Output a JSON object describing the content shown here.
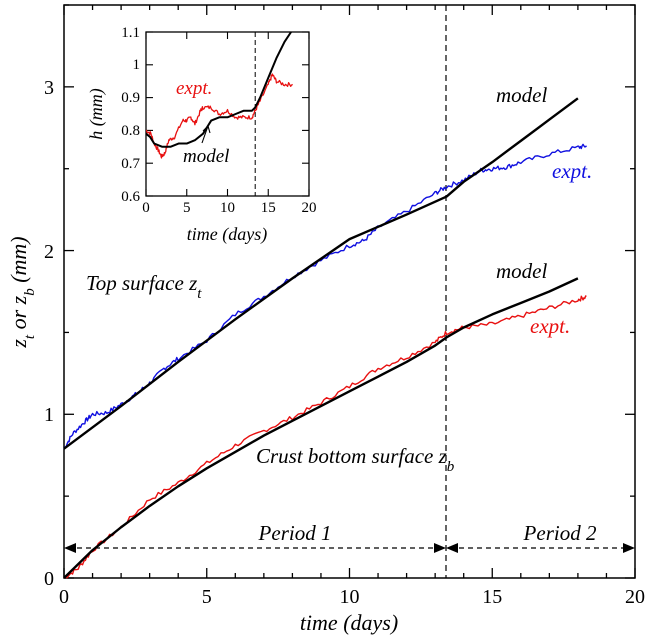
{
  "colors": {
    "expt_top": "#1010e0",
    "expt_bottom": "#e81010",
    "model": "#000000",
    "axis": "#000000"
  },
  "chart_data": [
    {
      "type": "line",
      "title": "",
      "xlabel": "time (days)",
      "ylabel_main": "z",
      "ylabel_sub1": "t",
      "ylabel_mid": " or z",
      "ylabel_sub2": "b",
      "ylabel_unit": " (mm)",
      "xlim": [
        0,
        20
      ],
      "ylim": [
        0,
        3.5
      ],
      "x_ticks": [
        "0",
        "5",
        "10",
        "15",
        "20"
      ],
      "y_ticks": [
        "0",
        "1",
        "2",
        "3"
      ],
      "grid": false,
      "period_boundary_x": 13.4,
      "annotations": {
        "period1": "Period 1",
        "period2": "Period 2",
        "top_surface": "Top surface z",
        "top_surface_sub": "t",
        "crust_bottom": "Crust bottom surface z",
        "crust_bottom_sub": "b",
        "model_top": "model",
        "model_bottom": "model",
        "expt_top": "expt.",
        "expt_bottom": "expt."
      },
      "series": [
        {
          "role": "top-expt",
          "x": [
            0,
            0.3,
            0.7,
            1.0,
            1.5,
            2.0,
            2.5,
            3.0,
            3.5,
            4.0,
            5.0,
            6.0,
            7.0,
            8.0,
            9.0,
            10.0,
            10.5,
            11.0,
            12.0,
            13.0,
            13.4,
            14.0,
            14.6,
            15.0,
            15.5,
            16.0,
            17.0,
            18.0,
            18.3
          ],
          "y": [
            0.79,
            0.88,
            0.95,
            1.0,
            1.01,
            1.06,
            1.12,
            1.19,
            1.28,
            1.34,
            1.45,
            1.61,
            1.72,
            1.84,
            1.94,
            2.03,
            2.06,
            2.14,
            2.24,
            2.35,
            2.39,
            2.43,
            2.49,
            2.5,
            2.51,
            2.54,
            2.59,
            2.63,
            2.64
          ]
        },
        {
          "role": "top-model",
          "x": [
            0,
            2,
            4,
            6,
            8,
            10,
            12,
            13.4,
            14,
            15,
            16,
            17,
            18
          ],
          "y": [
            0.79,
            1.05,
            1.32,
            1.58,
            1.83,
            2.07,
            2.22,
            2.33,
            2.42,
            2.54,
            2.67,
            2.8,
            2.93
          ]
        },
        {
          "role": "bottom-expt",
          "x": [
            0,
            0.5,
            1.0,
            2.0,
            3.0,
            4.0,
            5.0,
            6.0,
            7.0,
            8.0,
            9.0,
            10.0,
            11.0,
            12.0,
            13.0,
            13.4,
            14.0,
            15.0,
            16.0,
            17.0,
            18.0,
            18.3
          ],
          "y": [
            0.0,
            0.06,
            0.17,
            0.31,
            0.48,
            0.58,
            0.7,
            0.81,
            0.9,
            0.98,
            1.07,
            1.17,
            1.28,
            1.35,
            1.44,
            1.5,
            1.53,
            1.55,
            1.6,
            1.65,
            1.7,
            1.72
          ]
        },
        {
          "role": "bottom-model",
          "x": [
            0,
            1,
            2,
            3,
            4,
            5,
            6,
            7,
            8,
            9,
            10,
            11,
            12,
            13,
            13.4,
            14,
            15,
            16,
            17,
            18
          ],
          "y": [
            0.0,
            0.17,
            0.31,
            0.44,
            0.56,
            0.67,
            0.77,
            0.87,
            0.96,
            1.05,
            1.14,
            1.23,
            1.32,
            1.42,
            1.47,
            1.53,
            1.61,
            1.68,
            1.75,
            1.83
          ]
        }
      ]
    },
    {
      "type": "line",
      "title": "",
      "xlabel": "time (days)",
      "ylabel": "h (mm)",
      "xlim": [
        0,
        20
      ],
      "ylim": [
        0.6,
        1.1
      ],
      "x_ticks": [
        "0",
        "5",
        "10",
        "15",
        "20"
      ],
      "y_ticks": [
        "0.6",
        "0.7",
        "0.8",
        "0.9",
        "1",
        "1.1"
      ],
      "grid": false,
      "period_boundary_x": 13.4,
      "annotations": {
        "expt": "expt.",
        "model": "model"
      },
      "series": [
        {
          "role": "inset-expt",
          "x": [
            0,
            0.6,
            1.0,
            1.5,
            1.9,
            2.3,
            2.8,
            3.5,
            4.5,
            5.0,
            5.5,
            6.0,
            6.7,
            7.0,
            8.0,
            9.0,
            10.0,
            11.0,
            12.0,
            13.0,
            13.4,
            14.0,
            15.0,
            15.5,
            16.0,
            17.0,
            18.0
          ],
          "y": [
            0.8,
            0.79,
            0.76,
            0.74,
            0.72,
            0.73,
            0.77,
            0.78,
            0.83,
            0.83,
            0.84,
            0.82,
            0.86,
            0.87,
            0.87,
            0.85,
            0.86,
            0.84,
            0.84,
            0.84,
            0.86,
            0.89,
            0.94,
            0.97,
            0.95,
            0.94,
            0.94
          ]
        },
        {
          "role": "inset-model",
          "x": [
            0,
            0.5,
            1.0,
            2.0,
            3.0,
            4.0,
            5.0,
            6.0,
            7.0,
            8.0,
            9.0,
            10.0,
            11.0,
            12.0,
            13.0,
            13.4,
            14.0,
            15.0,
            16.0,
            17.0,
            17.8
          ],
          "y": [
            0.79,
            0.78,
            0.76,
            0.75,
            0.75,
            0.76,
            0.76,
            0.77,
            0.79,
            0.83,
            0.84,
            0.84,
            0.85,
            0.86,
            0.86,
            0.87,
            0.9,
            0.96,
            1.02,
            1.07,
            1.1
          ]
        }
      ]
    }
  ]
}
